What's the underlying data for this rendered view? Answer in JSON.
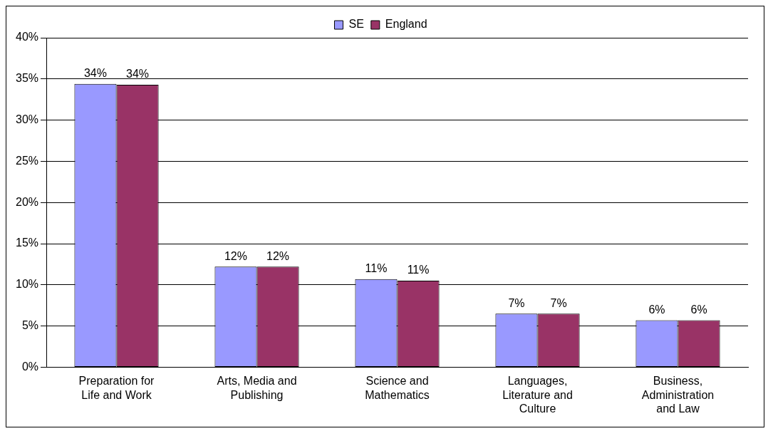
{
  "chart_data": {
    "type": "bar",
    "categories": [
      "Preparation for Life and Work",
      "Arts, Media and Publishing",
      "Science and Mathematics",
      "Languages, Literature and Culture",
      "Business, Administration and Law"
    ],
    "series": [
      {
        "name": "SE",
        "color": "#9999ff",
        "values": [
          34.4,
          12.2,
          10.7,
          6.5,
          5.7
        ],
        "value_labels": [
          "34%",
          "12%",
          "11%",
          "7%",
          "6%"
        ]
      },
      {
        "name": "England",
        "color": "#993366",
        "values": [
          34.3,
          12.2,
          10.5,
          6.5,
          5.7
        ],
        "value_labels": [
          "34%",
          "12%",
          "11%",
          "7%",
          "6%"
        ]
      }
    ],
    "ylim": [
      0,
      40
    ],
    "yticks": [
      {
        "value": 0,
        "label": "0%"
      },
      {
        "value": 5,
        "label": "5%"
      },
      {
        "value": 10,
        "label": "10%"
      },
      {
        "value": 15,
        "label": "15%"
      },
      {
        "value": 20,
        "label": "20%"
      },
      {
        "value": 25,
        "label": "25%"
      },
      {
        "value": 30,
        "label": "30%"
      },
      {
        "value": 35,
        "label": "35%"
      },
      {
        "value": 40,
        "label": "40%"
      }
    ],
    "grid": "y",
    "legend": "top"
  }
}
